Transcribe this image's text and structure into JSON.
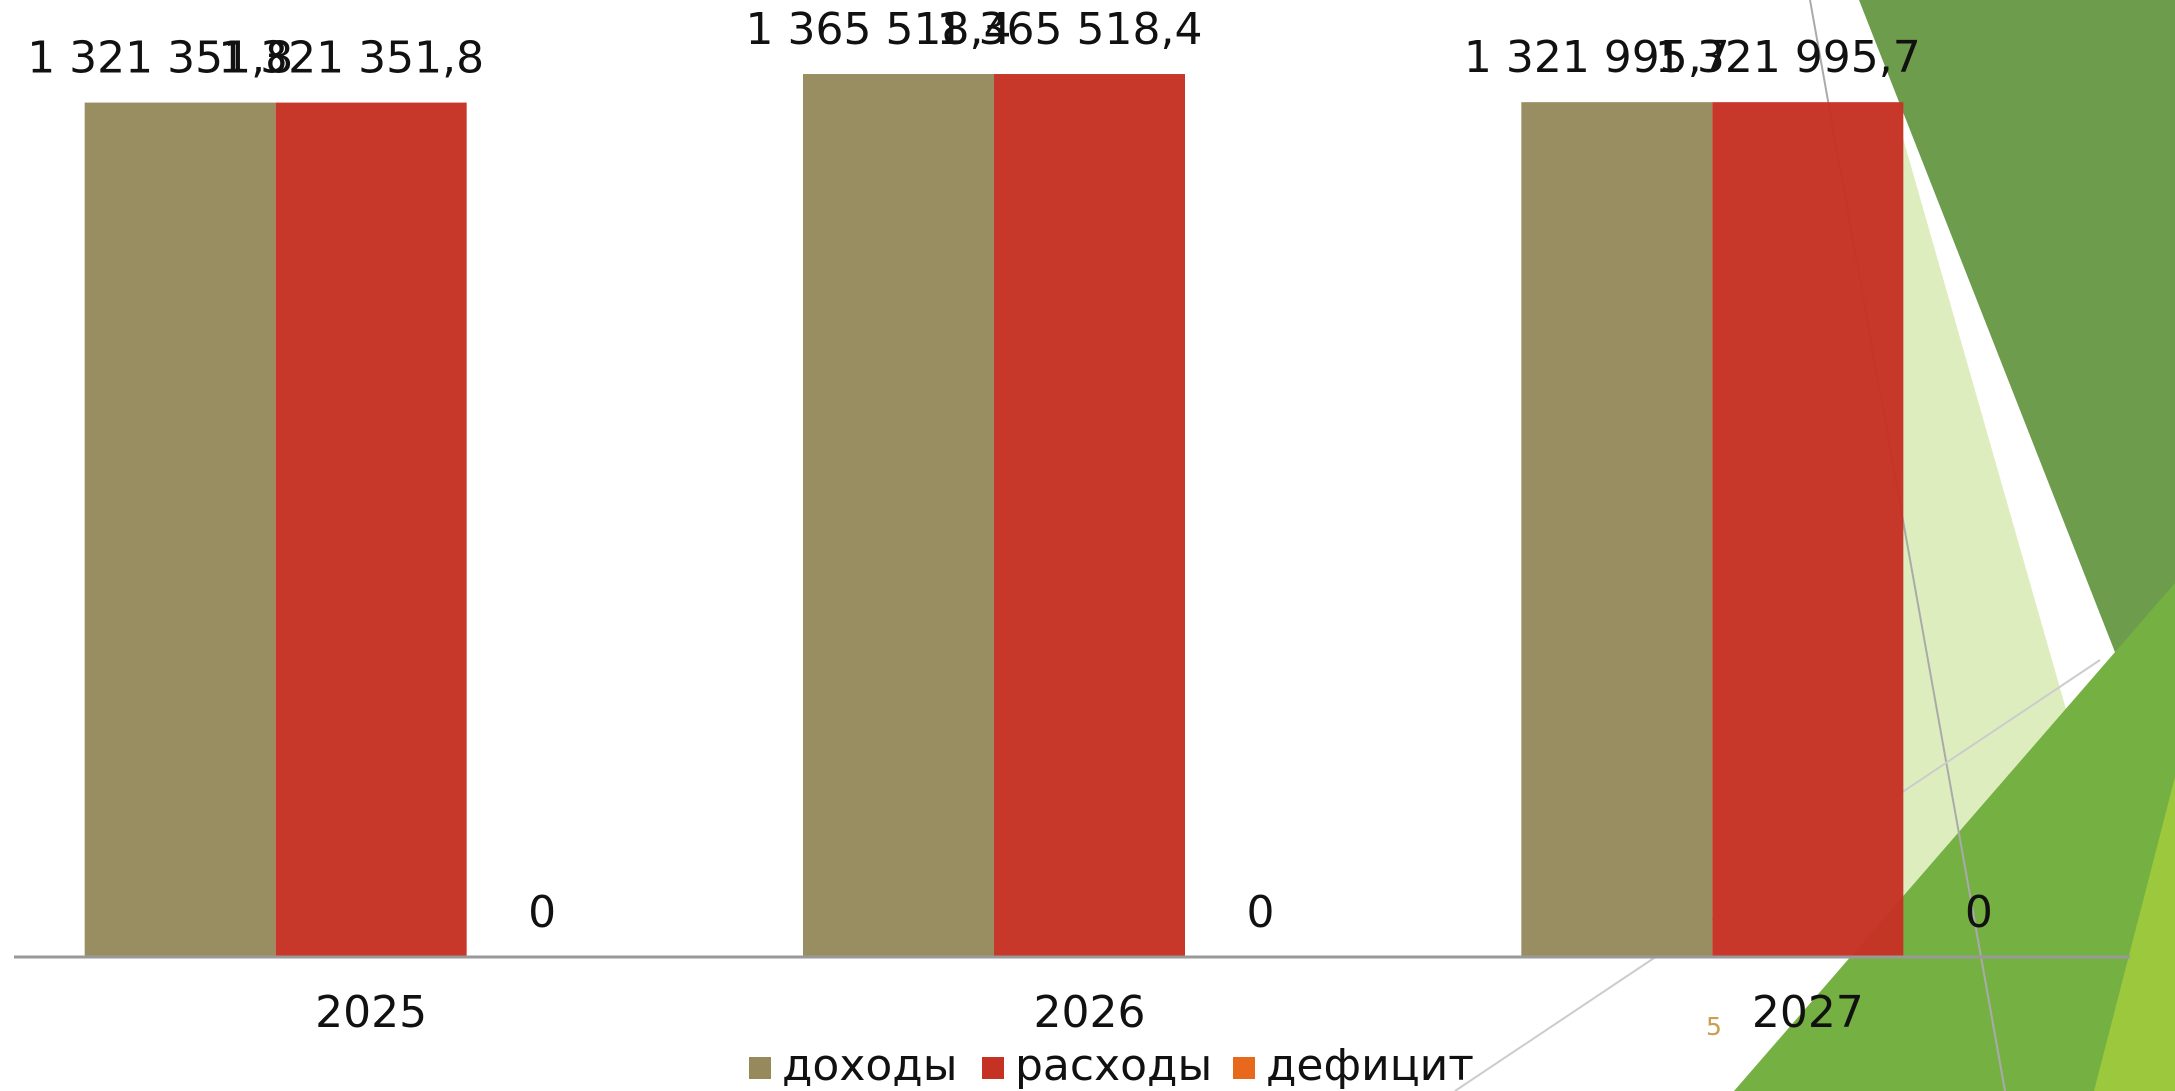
{
  "chart_data": {
    "type": "bar",
    "categories": [
      "2025",
      "2026",
      "2027"
    ],
    "series": [
      {
        "name": "доходы",
        "color": "#968a5c",
        "values": [
          1321351.8,
          1365518.4,
          1321995.7
        ],
        "value_labels": [
          "1 321 351,8",
          "1 365 518,4",
          "1 321 995,7"
        ]
      },
      {
        "name": "расходы",
        "color": "#c53224",
        "values": [
          1321351.8,
          1365518.4,
          1321995.7
        ],
        "value_labels": [
          "1 321 351,8",
          "1 365 518,4",
          "1 321 995,7"
        ]
      },
      {
        "name": "дефицит",
        "color": "#e8681c",
        "values": [
          0,
          0,
          0
        ]
      }
    ],
    "ylim": [
      0,
      1480000
    ]
  },
  "slide_number": "5"
}
